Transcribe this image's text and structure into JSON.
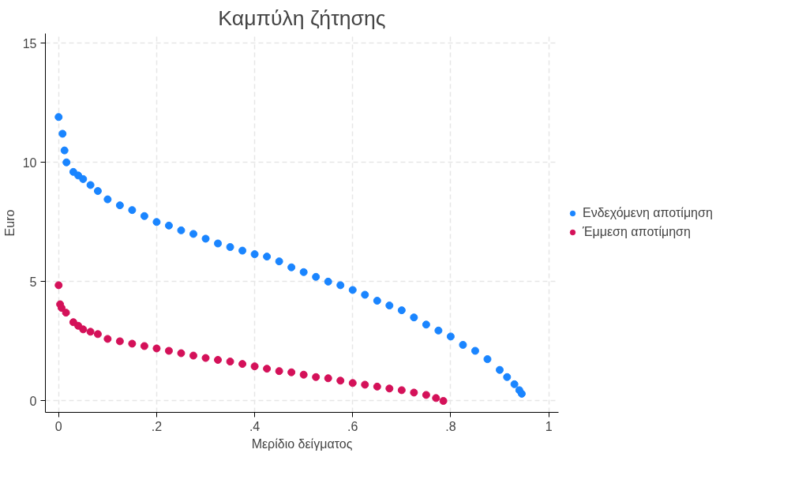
{
  "chart_data": {
    "type": "scatter",
    "title": "Καμπύλη ζήτησης",
    "xlabel": "Μερίδιο δείγματος",
    "ylabel": "Euro",
    "xlim": [
      -0.027,
      1.02
    ],
    "ylim": [
      -0.48,
      15.4
    ],
    "xticks": [
      0,
      {
        "value": 0.2,
        "label": ".2"
      },
      {
        "value": 0.4,
        "label": ".4"
      },
      {
        "value": 0.6,
        "label": ".6"
      },
      {
        "value": 0.8,
        "label": ".8"
      },
      1
    ],
    "yticks": [
      0,
      5,
      10,
      15
    ],
    "grid": true,
    "legend": "right",
    "marker": "circle",
    "series": [
      {
        "name": "Ενδεχόμενη αποτίμηση",
        "color": "#1a85ff",
        "x": [
          0,
          0.008,
          0.012,
          0.016,
          0.03,
          0.04,
          0.05,
          0.065,
          0.08,
          0.1,
          0.125,
          0.15,
          0.175,
          0.2,
          0.225,
          0.25,
          0.275,
          0.3,
          0.325,
          0.35,
          0.375,
          0.4,
          0.425,
          0.45,
          0.475,
          0.5,
          0.525,
          0.55,
          0.575,
          0.6,
          0.625,
          0.65,
          0.675,
          0.7,
          0.725,
          0.75,
          0.775,
          0.8,
          0.825,
          0.85,
          0.875,
          0.9,
          0.915,
          0.93,
          0.94,
          0.945
        ],
        "values": [
          11.9,
          11.2,
          10.5,
          10.0,
          9.6,
          9.45,
          9.3,
          9.05,
          8.8,
          8.45,
          8.2,
          8.0,
          7.75,
          7.5,
          7.35,
          7.15,
          7.0,
          6.8,
          6.6,
          6.45,
          6.3,
          6.15,
          6.05,
          5.85,
          5.6,
          5.4,
          5.2,
          5.0,
          4.85,
          4.65,
          4.45,
          4.2,
          4.0,
          3.8,
          3.5,
          3.2,
          2.95,
          2.7,
          2.35,
          2.1,
          1.75,
          1.3,
          1.0,
          0.7,
          0.45,
          0.3
        ]
      },
      {
        "name": "Έμμεση αποτίμηση",
        "color": "#d41159",
        "x": [
          0,
          0.003,
          0.006,
          0.015,
          0.03,
          0.04,
          0.05,
          0.065,
          0.08,
          0.1,
          0.125,
          0.15,
          0.175,
          0.2,
          0.225,
          0.25,
          0.275,
          0.3,
          0.325,
          0.35,
          0.375,
          0.4,
          0.425,
          0.45,
          0.475,
          0.5,
          0.525,
          0.55,
          0.575,
          0.6,
          0.625,
          0.65,
          0.675,
          0.7,
          0.725,
          0.75,
          0.77,
          0.785
        ],
        "values": [
          4.85,
          4.05,
          3.9,
          3.7,
          3.3,
          3.15,
          3.0,
          2.9,
          2.8,
          2.6,
          2.5,
          2.4,
          2.3,
          2.2,
          2.1,
          2.0,
          1.9,
          1.8,
          1.72,
          1.65,
          1.55,
          1.45,
          1.35,
          1.25,
          1.2,
          1.1,
          1.0,
          0.95,
          0.85,
          0.75,
          0.68,
          0.6,
          0.52,
          0.45,
          0.35,
          0.25,
          0.12,
          0.0
        ]
      }
    ]
  }
}
